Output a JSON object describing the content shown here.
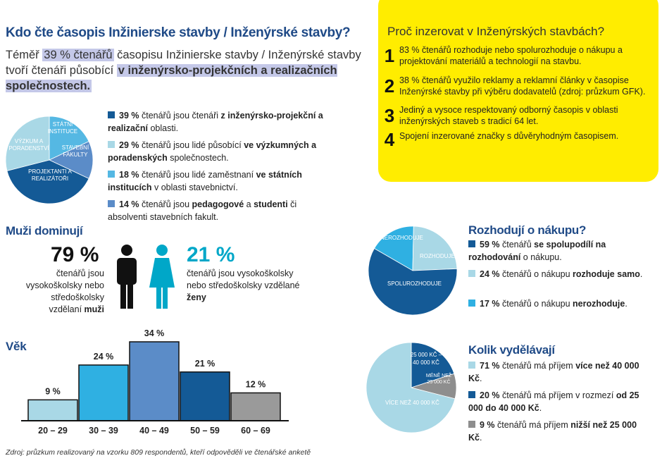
{
  "header": {
    "title": "Kdo čte časopis Inžinierske stavby / Inženýrské stavby?",
    "lead_1": "Téměř ",
    "lead_2": "39 % čtenářů",
    "lead_3": " časopisu Inžinierske stavby / Inženýrské stavby tvoří čtenáři působící ",
    "lead_4": "v inženýrsko-projekčních a realizačních společnostech."
  },
  "readers": {
    "pie_labels": [
      "STÁTNÍ INSTITUCE",
      "VÝZKUM A PORADENSTVÍ",
      "STAVEBNÍ FAKULTY",
      "PROJEKTANTI A REALIZÁTOŘI"
    ],
    "pie_values": [
      18,
      29,
      14,
      39
    ],
    "colors": [
      "#55b8e3",
      "#a9d8e6",
      "#5b8cc8",
      "#145a96"
    ],
    "items": [
      {
        "pct": "39 %",
        "p1": " čtenářů jsou čtenáři ",
        "bold": "z inženýrsko-projekční a realizační",
        "p2": " oblasti."
      },
      {
        "pct": "29 %",
        "p1": " čtenářů jsou lidé působící ",
        "bold": "ve výzkumných a poradenských",
        "p2": " společnostech."
      },
      {
        "pct": "18 %",
        "p1": " čtenářů jsou lidé zaměstnaní ",
        "bold": "ve státních institucích",
        "p2": " v oblasti stavebnictví."
      },
      {
        "pct": "14 %",
        "p1": " čtenářů jsou ",
        "bold": "pedagogové",
        "p2": " a ",
        "bold2": "studenti",
        "p3": " či absolventi stavebních fakult."
      }
    ]
  },
  "why": {
    "title": "Proč inzerovat v Inženýrských stavbách?",
    "items": [
      {
        "num": "1",
        "text": "83 % čtenářů rozhoduje nebo spolurozhoduje o nákupu a projektování materiálů a technologií na stavbu."
      },
      {
        "num": "2",
        "text": "38 % čtenářů využilo reklamy a reklamní články v časopise Inženýrské stavby při výběru dodavatelů (zdroj: průzkum GFK)."
      },
      {
        "num": "3",
        "text": "Jediný a vysoce respektovaný odborný časopis v oblasti inženýrských staveb s tradicí 64 let."
      },
      {
        "num": "4",
        "text": "Spojení inzerované značky s důvěryhodným časopisem."
      }
    ]
  },
  "gender": {
    "heading": "Muži dominují",
    "male_pct": "79 %",
    "male_text": "čtenářů jsou vysokoškolsky nebo středoškolsky vzdělaní ",
    "male_bold": "muži",
    "female_pct": "21 %",
    "female_text": "čtenářů jsou vysokoškolsky nebo středoškolsky vzdělané ",
    "female_bold": "ženy",
    "male_color": "#111111",
    "female_color": "#00a7c8"
  },
  "age": {
    "heading": "Věk",
    "source": "Zdroj: průzkum realizovaný na vzorku 809 respondentů, kteří odpověděli ve čtenářské anketě"
  },
  "purchase": {
    "heading": "Rozhodují o nákupu?",
    "pie_labels": [
      "NEROZHODUJE",
      "ROZHODUJE",
      "SPOLUROZHODUJE"
    ],
    "pie_values": [
      17,
      24,
      59
    ],
    "colors": [
      "#2fb0e2",
      "#a9d8e6",
      "#145a96"
    ],
    "items": [
      {
        "pct": "59 %",
        "p1": " čtenářů ",
        "bold": "se spolupodílí na rozhodování",
        "p2": " o nákupu."
      },
      {
        "pct": "24 %",
        "p1": " čtenářů o nákupu ",
        "bold": "rozhoduje samo",
        "p2": "."
      },
      {
        "pct": "17 %",
        "p1": " čtenářů o nákupu ",
        "bold": "nerozhoduje",
        "p2": "."
      }
    ]
  },
  "income": {
    "heading": "Kolik vydělávají",
    "pie_labels": [
      "VÍCE NEŽ 40 000 KČ",
      "25 000 KČ – 40 000 KČ",
      "MÉNĚ NEŽ 25 000 KČ"
    ],
    "pie_values": [
      71,
      20,
      9
    ],
    "colors": [
      "#a9d8e6",
      "#145a96",
      "#8e8e8e"
    ],
    "items": [
      {
        "pct": "71 %",
        "p1": " čtenářů má příjem ",
        "bold": "více než 40 000 Kč",
        "p2": "."
      },
      {
        "pct": "20 %",
        "p1": " čtenářů má příjem v rozmezí ",
        "bold": "od 25 000 do 40 000 Kč",
        "p2": "."
      },
      {
        "pct": "9 %",
        "p1": " čtenářů má příjem ",
        "bold": "nižší než 25 000 Kč",
        "p2": "."
      }
    ]
  },
  "chart_data": {
    "type": "bar",
    "categories": [
      "20 – 29",
      "30 – 39",
      "40 – 49",
      "50 – 59",
      "60 – 69"
    ],
    "values": [
      9,
      24,
      34,
      21,
      12
    ],
    "labels": [
      "9 %",
      "24 %",
      "34 %",
      "21 %",
      "12 %"
    ],
    "colors": [
      "#a9d8e6",
      "#2fb0e2",
      "#5b8cc8",
      "#145a96",
      "#9a9a9a"
    ],
    "title": "Věk",
    "ylim": [
      0,
      34
    ]
  }
}
